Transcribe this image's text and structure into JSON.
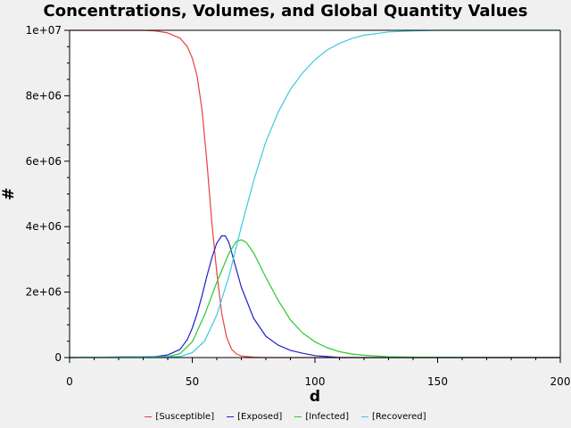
{
  "chart_data": {
    "type": "line",
    "title": "Concentrations, Volumes, and Global Quantity Values",
    "xlabel": "d",
    "ylabel": "#",
    "xlim": [
      0,
      200
    ],
    "ylim": [
      0,
      10000000
    ],
    "xticks": [
      0,
      50,
      100,
      150,
      200
    ],
    "xtick_labels": [
      "0",
      "50",
      "100",
      "150",
      "200"
    ],
    "yticks": [
      0,
      2000000,
      4000000,
      6000000,
      8000000,
      10000000
    ],
    "ytick_labels": [
      "0",
      "2e+06",
      "4e+06",
      "6e+06",
      "8e+06",
      "1e+07"
    ],
    "grid": false,
    "legend_position": "bottom",
    "series": [
      {
        "name": "[Susceptible]",
        "color": "#e8403e",
        "x": [
          0,
          30,
          35,
          40,
          45,
          48,
          50,
          52,
          54,
          56,
          58,
          60,
          62,
          64,
          66,
          68,
          70,
          75,
          80,
          100,
          200
        ],
        "y": [
          10000000,
          10000000,
          9980000,
          9920000,
          9760000,
          9500000,
          9150000,
          8600000,
          7550000,
          5950000,
          4100000,
          2600000,
          1350000,
          620000,
          260000,
          110000,
          50000,
          10000,
          0,
          0,
          0
        ]
      },
      {
        "name": "[Exposed]",
        "color": "#2020c8",
        "x": [
          0,
          35,
          40,
          45,
          48,
          50,
          52,
          54,
          56,
          58,
          60,
          62,
          63.5,
          65,
          67,
          70,
          75,
          80,
          85,
          90,
          95,
          100,
          105,
          110,
          120,
          200
        ],
        "y": [
          0,
          30000,
          80000,
          250000,
          550000,
          900000,
          1350000,
          1900000,
          2500000,
          3050000,
          3500000,
          3720000,
          3720000,
          3500000,
          2950000,
          2150000,
          1200000,
          650000,
          380000,
          220000,
          130000,
          60000,
          30000,
          0,
          0,
          0
        ]
      },
      {
        "name": "[Infected]",
        "color": "#2cc82c",
        "x": [
          0,
          40,
          45,
          50,
          55,
          60,
          65,
          68,
          70,
          72,
          75,
          80,
          85,
          90,
          95,
          100,
          105,
          110,
          115,
          120,
          130,
          140,
          200
        ],
        "y": [
          0,
          30000,
          120000,
          480000,
          1300000,
          2300000,
          3200000,
          3550000,
          3600000,
          3520000,
          3200000,
          2450000,
          1750000,
          1150000,
          750000,
          480000,
          300000,
          180000,
          110000,
          70000,
          25000,
          10000,
          0
        ]
      },
      {
        "name": "[Recovered]",
        "color": "#3ec8e0",
        "x": [
          0,
          45,
          50,
          55,
          60,
          65,
          70,
          75,
          80,
          85,
          90,
          95,
          100,
          105,
          110,
          115,
          120,
          130,
          140,
          150,
          160,
          175,
          200
        ],
        "y": [
          0,
          30000,
          150000,
          500000,
          1300000,
          2500000,
          4000000,
          5400000,
          6600000,
          7500000,
          8200000,
          8700000,
          9100000,
          9400000,
          9600000,
          9750000,
          9850000,
          9950000,
          9980000,
          10000000,
          10000000,
          10000000,
          10000000
        ]
      }
    ]
  }
}
